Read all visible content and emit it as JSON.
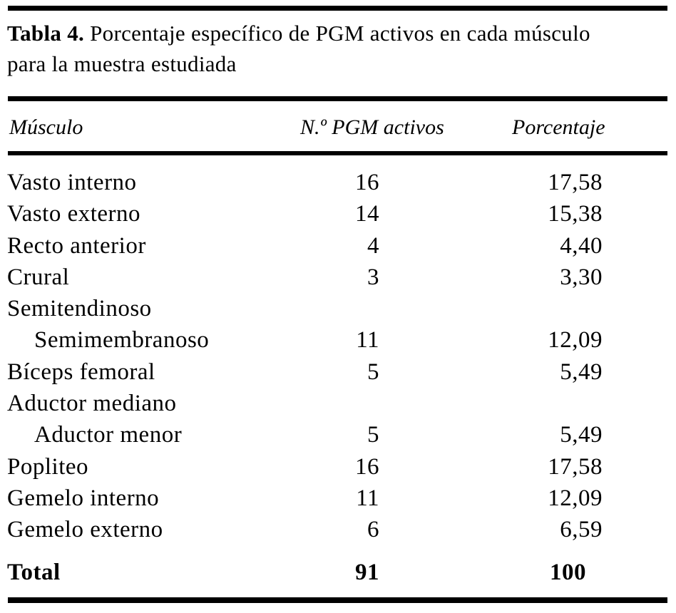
{
  "table": {
    "title": {
      "bold": "Tabla 4.",
      "line1_rest": " Porcentaje específico de PGM activos en cada músculo",
      "line2": "para la muestra estudiada"
    },
    "columns": [
      "Músculo",
      "N.º PGM activos",
      "Porcentaje"
    ],
    "rows": [
      {
        "muscle": "Vasto interno",
        "indent": false,
        "n": "16",
        "pct": "17,58"
      },
      {
        "muscle": "Vasto externo",
        "indent": false,
        "n": "14",
        "pct": "15,38"
      },
      {
        "muscle": "Recto anterior",
        "indent": false,
        "n": "4",
        "pct": "4,40"
      },
      {
        "muscle": "Crural",
        "indent": false,
        "n": "3",
        "pct": "3,30"
      },
      {
        "muscle": "Semitendinoso",
        "indent": false,
        "n": "",
        "pct": ""
      },
      {
        "muscle": "Semimembranoso",
        "indent": true,
        "n": "11",
        "pct": "12,09"
      },
      {
        "muscle": "Bíceps femoral",
        "indent": false,
        "n": "5",
        "pct": "5,49"
      },
      {
        "muscle": "Aductor mediano",
        "indent": false,
        "n": "",
        "pct": ""
      },
      {
        "muscle": "Aductor menor",
        "indent": true,
        "n": "5",
        "pct": "5,49"
      },
      {
        "muscle": "Popliteo",
        "indent": false,
        "n": "16",
        "pct": "17,58"
      },
      {
        "muscle": "Gemelo interno",
        "indent": false,
        "n": "11",
        "pct": "12,09"
      },
      {
        "muscle": "Gemelo externo",
        "indent": false,
        "n": "6",
        "pct": "6,59"
      }
    ],
    "total": {
      "label": "Total",
      "n": "91",
      "pct": "100"
    }
  },
  "colors": {
    "background": "#ffffff",
    "text": "#000000",
    "rule": "#000000"
  }
}
